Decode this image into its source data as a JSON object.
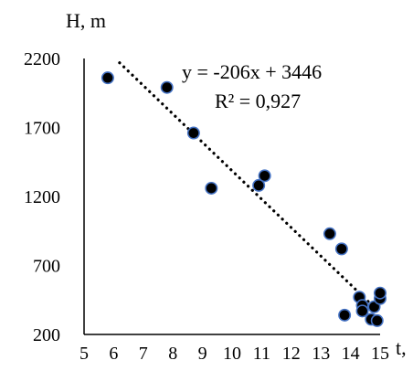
{
  "colors": {
    "point_fill": "#000000",
    "point_stroke": "#4472c4",
    "axis": "#000000",
    "trendline": "#000000"
  },
  "chart_data": {
    "type": "scatter",
    "title": "",
    "xlabel": "t,",
    "ylabel": "H, m",
    "xlim": [
      5,
      15
    ],
    "ylim": [
      200,
      2200
    ],
    "xticks": [
      5,
      6,
      7,
      8,
      9,
      10,
      11,
      12,
      13,
      14,
      15
    ],
    "yticks": [
      200,
      700,
      1200,
      1700,
      2200
    ],
    "grid": false,
    "legend": "none",
    "series": [
      {
        "points": [
          {
            "x": 5.8,
            "y": 2060
          },
          {
            "x": 7.8,
            "y": 1990
          },
          {
            "x": 8.7,
            "y": 1660
          },
          {
            "x": 9.3,
            "y": 1260
          },
          {
            "x": 10.9,
            "y": 1280
          },
          {
            "x": 11.1,
            "y": 1350
          },
          {
            "x": 13.3,
            "y": 930
          },
          {
            "x": 13.7,
            "y": 820
          },
          {
            "x": 13.8,
            "y": 340
          },
          {
            "x": 14.3,
            "y": 470
          },
          {
            "x": 14.4,
            "y": 410
          },
          {
            "x": 14.4,
            "y": 370
          },
          {
            "x": 14.7,
            "y": 310
          },
          {
            "x": 14.8,
            "y": 400
          },
          {
            "x": 14.9,
            "y": 300
          },
          {
            "x": 15.0,
            "y": 460
          },
          {
            "x": 15.0,
            "y": 500
          }
        ]
      }
    ],
    "trendline": {
      "slope": -206,
      "intercept": 3446,
      "x_range": [
        6.2,
        14.6
      ],
      "equation": "y = -206x + 3446",
      "r2": "R² = 0,927"
    }
  }
}
